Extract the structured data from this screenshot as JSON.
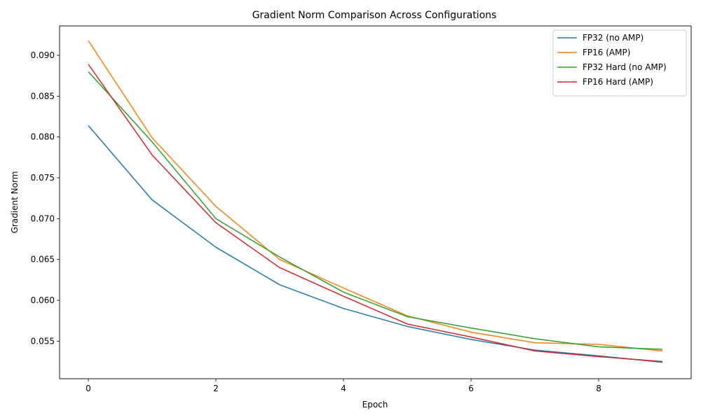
{
  "chart_data": {
    "type": "line",
    "title": "Gradient Norm Comparison Across Configurations",
    "xlabel": "Epoch",
    "ylabel": "Gradient Norm",
    "xlim": [
      -0.45,
      9.45
    ],
    "ylim": [
      0.0504,
      0.0936
    ],
    "xticks": [
      0,
      2,
      4,
      6,
      8
    ],
    "yticks": [
      0.055,
      0.06,
      0.065,
      0.07,
      0.075,
      0.08,
      0.085,
      0.09
    ],
    "grid": false,
    "legend_position": "top-right",
    "x": [
      0,
      1,
      2,
      3,
      4,
      5,
      6,
      7,
      8,
      9
    ],
    "series": [
      {
        "name": "FP32 (no AMP)",
        "color": "#1f77b4",
        "values": [
          0.0814,
          0.0723,
          0.0665,
          0.0619,
          0.059,
          0.0568,
          0.0552,
          0.0539,
          0.0532,
          0.0524
        ]
      },
      {
        "name": "FP16 (AMP)",
        "color": "#ff7f0e",
        "values": [
          0.0918,
          0.0799,
          0.0715,
          0.065,
          0.0615,
          0.0581,
          0.0561,
          0.0548,
          0.0546,
          0.0538
        ]
      },
      {
        "name": "FP32 Hard (no AMP)",
        "color": "#2ca02c",
        "values": [
          0.088,
          0.0794,
          0.07,
          0.0653,
          0.061,
          0.058,
          0.0566,
          0.0553,
          0.0543,
          0.054
        ]
      },
      {
        "name": "FP16 Hard (AMP)",
        "color": "#d62728",
        "values": [
          0.0889,
          0.0778,
          0.0695,
          0.064,
          0.0605,
          0.0571,
          0.0555,
          0.0538,
          0.0531,
          0.0525
        ]
      }
    ]
  }
}
